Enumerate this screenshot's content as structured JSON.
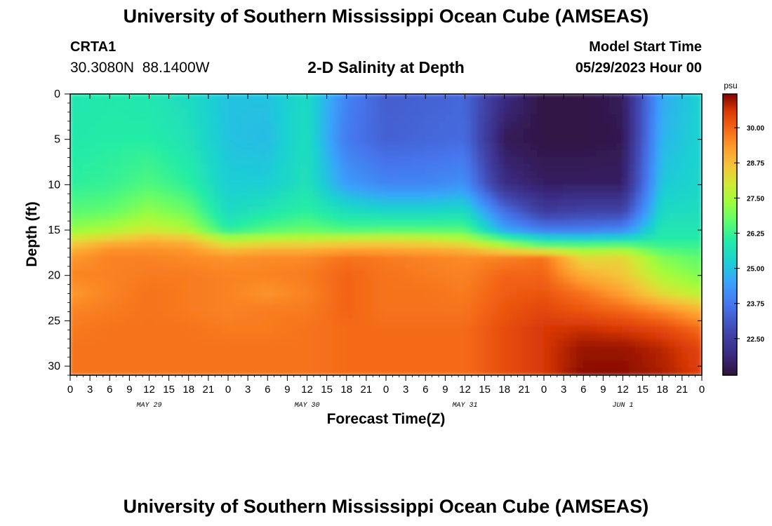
{
  "header": {
    "title": "University of Southern Mississippi Ocean Cube (AMSEAS)",
    "station_name": "CRTA1",
    "station_coords": "30.3080N  88.1400W",
    "subtitle": "2-D Salinity at Depth",
    "model_start_label": "Model Start Time",
    "model_start_value": "05/29/2023 Hour 00"
  },
  "footer": {
    "title": "University of Southern Mississippi Ocean Cube (AMSEAS)"
  },
  "chart_data": {
    "type": "heatmap",
    "title": "2-D Salinity at Depth",
    "xlabel": "Forecast Time(Z)",
    "ylabel": "Depth (ft)",
    "x_ticks": [
      "0",
      "3",
      "6",
      "9",
      "12",
      "15",
      "18",
      "21",
      "0",
      "3",
      "6",
      "9",
      "12",
      "15",
      "18",
      "21",
      "0",
      "3",
      "6",
      "9",
      "12",
      "15",
      "18",
      "21",
      "0",
      "3",
      "6",
      "9",
      "12",
      "15",
      "18",
      "21",
      "0"
    ],
    "x_range_hours": [
      0,
      96
    ],
    "date_labels": [
      {
        "label": "MAY 29",
        "hour": 12
      },
      {
        "label": "MAY 30",
        "hour": 36
      },
      {
        "label": "MAY 31",
        "hour": 60
      },
      {
        "label": "JUN 1",
        "hour": 84
      }
    ],
    "y_ticks": [
      0,
      5,
      10,
      15,
      20,
      25,
      30
    ],
    "y_range_ft": [
      0,
      31
    ],
    "colorbar": {
      "unit": "psu",
      "ticks": [
        "30.00",
        "28.75",
        "27.50",
        "26.25",
        "25.00",
        "23.75",
        "22.50"
      ],
      "tick_values": [
        30.0,
        28.75,
        27.5,
        26.25,
        25.0,
        23.75,
        22.5
      ],
      "range": [
        21.2,
        31.2
      ]
    },
    "grid_time_hours": [
      0,
      6,
      12,
      18,
      24,
      30,
      36,
      42,
      48,
      54,
      60,
      66,
      72,
      78,
      84,
      90,
      96
    ],
    "grid_depth_ft": [
      0,
      5,
      10,
      13,
      15,
      16,
      17,
      18,
      20,
      22,
      24,
      26,
      28,
      31
    ],
    "values": [
      [
        25.8,
        25.9,
        25.8,
        25.5,
        25.0,
        25.0,
        25.5,
        24.0,
        23.2,
        23.3,
        23.4,
        22.0,
        21.3,
        21.3,
        21.5,
        24.6,
        25.3
      ],
      [
        25.9,
        26.0,
        26.0,
        25.7,
        25.0,
        24.9,
        25.6,
        23.8,
        23.3,
        23.4,
        23.5,
        21.5,
        21.3,
        21.3,
        21.4,
        24.8,
        25.3
      ],
      [
        26.1,
        26.2,
        26.5,
        26.1,
        25.2,
        25.2,
        25.7,
        24.4,
        24.0,
        24.0,
        24.2,
        22.0,
        21.6,
        21.6,
        21.6,
        25.1,
        25.4
      ],
      [
        26.6,
        26.7,
        27.2,
        26.8,
        25.5,
        25.8,
        26.1,
        25.6,
        25.4,
        25.4,
        25.5,
        23.6,
        22.4,
        22.6,
        22.6,
        25.5,
        25.6
      ],
      [
        27.2,
        27.5,
        27.9,
        27.5,
        26.0,
        26.5,
        26.7,
        26.4,
        26.5,
        26.5,
        26.5,
        24.5,
        23.8,
        23.8,
        24.0,
        25.8,
        25.8
      ],
      [
        28.0,
        28.4,
        28.8,
        28.6,
        27.4,
        27.6,
        27.7,
        27.8,
        27.9,
        27.8,
        27.5,
        26.3,
        25.3,
        25.2,
        25.3,
        26.0,
        26.0
      ],
      [
        28.8,
        29.4,
        29.4,
        29.3,
        28.5,
        28.8,
        28.8,
        29.0,
        29.0,
        28.9,
        28.7,
        27.8,
        27.0,
        27.0,
        27.1,
        26.3,
        26.3
      ],
      [
        29.3,
        29.6,
        29.6,
        29.5,
        29.4,
        29.5,
        29.5,
        29.8,
        29.7,
        29.6,
        29.5,
        29.6,
        29.8,
        28.2,
        28.3,
        27.0,
        26.6
      ],
      [
        29.6,
        29.6,
        29.7,
        29.7,
        29.6,
        29.6,
        29.7,
        30.0,
        29.8,
        29.7,
        29.6,
        30.0,
        30.0,
        29.0,
        28.6,
        27.5,
        27.0
      ],
      [
        29.3,
        29.6,
        29.8,
        29.7,
        29.6,
        29.4,
        29.6,
        30.0,
        29.8,
        29.8,
        29.7,
        30.1,
        30.2,
        29.8,
        29.2,
        28.2,
        27.6
      ],
      [
        29.6,
        29.7,
        29.8,
        29.7,
        29.6,
        29.7,
        29.7,
        30.0,
        29.8,
        29.8,
        29.8,
        30.2,
        30.4,
        30.2,
        30.0,
        29.6,
        29.0
      ],
      [
        29.7,
        29.8,
        29.8,
        29.8,
        29.7,
        29.7,
        29.8,
        29.9,
        29.9,
        29.9,
        29.9,
        30.3,
        30.6,
        30.7,
        30.6,
        30.4,
        29.9
      ],
      [
        29.8,
        29.8,
        29.8,
        29.8,
        29.8,
        29.8,
        29.8,
        29.9,
        29.9,
        29.9,
        29.9,
        30.3,
        30.6,
        31.0,
        31.0,
        30.8,
        30.4
      ],
      [
        29.8,
        29.8,
        29.8,
        29.8,
        29.8,
        29.8,
        29.8,
        29.9,
        29.9,
        29.9,
        29.9,
        30.3,
        30.6,
        31.1,
        31.1,
        30.9,
        30.5
      ]
    ]
  },
  "colors": {
    "frame": "#000000",
    "background": "#ffffff"
  }
}
